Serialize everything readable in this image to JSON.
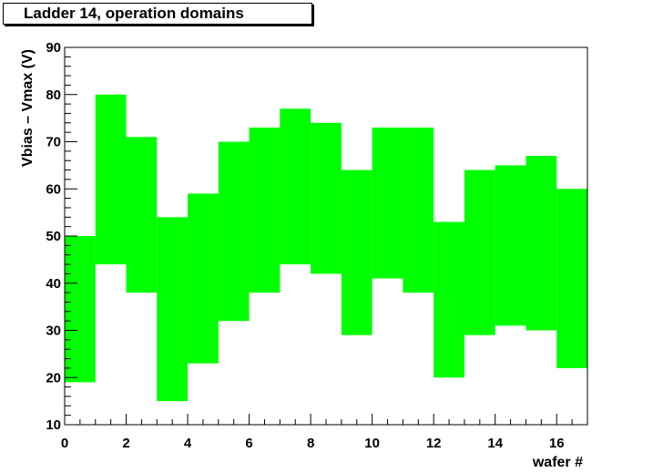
{
  "chart_data": {
    "type": "bar",
    "subtype": "range-histogram",
    "title": "Ladder 14, operation domains",
    "xlabel": "wafer #",
    "ylabel": "Vbias – Vmax (V)",
    "xlim": [
      0,
      17
    ],
    "ylim": [
      10,
      90
    ],
    "x_major_ticks": [
      0,
      2,
      4,
      6,
      8,
      10,
      12,
      14,
      16
    ],
    "y_major_ticks": [
      10,
      20,
      30,
      40,
      50,
      60,
      70,
      80,
      90
    ],
    "fill_color": "#00ff00",
    "bins": [
      {
        "x0": 0,
        "x1": 1,
        "low": 19,
        "high": 50
      },
      {
        "x0": 1,
        "x1": 2,
        "low": 44,
        "high": 80
      },
      {
        "x0": 2,
        "x1": 3,
        "low": 38,
        "high": 71
      },
      {
        "x0": 3,
        "x1": 4,
        "low": 15,
        "high": 54
      },
      {
        "x0": 4,
        "x1": 5,
        "low": 23,
        "high": 59
      },
      {
        "x0": 5,
        "x1": 6,
        "low": 32,
        "high": 70
      },
      {
        "x0": 6,
        "x1": 7,
        "low": 38,
        "high": 73
      },
      {
        "x0": 7,
        "x1": 8,
        "low": 44,
        "high": 77
      },
      {
        "x0": 8,
        "x1": 9,
        "low": 42,
        "high": 74
      },
      {
        "x0": 9,
        "x1": 10,
        "low": 29,
        "high": 64
      },
      {
        "x0": 10,
        "x1": 11,
        "low": 41,
        "high": 73
      },
      {
        "x0": 11,
        "x1": 12,
        "low": 38,
        "high": 73
      },
      {
        "x0": 12,
        "x1": 13,
        "low": 20,
        "high": 53
      },
      {
        "x0": 13,
        "x1": 14,
        "low": 29,
        "high": 64
      },
      {
        "x0": 14,
        "x1": 15,
        "low": 31,
        "high": 65
      },
      {
        "x0": 15,
        "x1": 16,
        "low": 30,
        "high": 67
      },
      {
        "x0": 16,
        "x1": 17,
        "low": 22,
        "high": 60
      }
    ]
  }
}
